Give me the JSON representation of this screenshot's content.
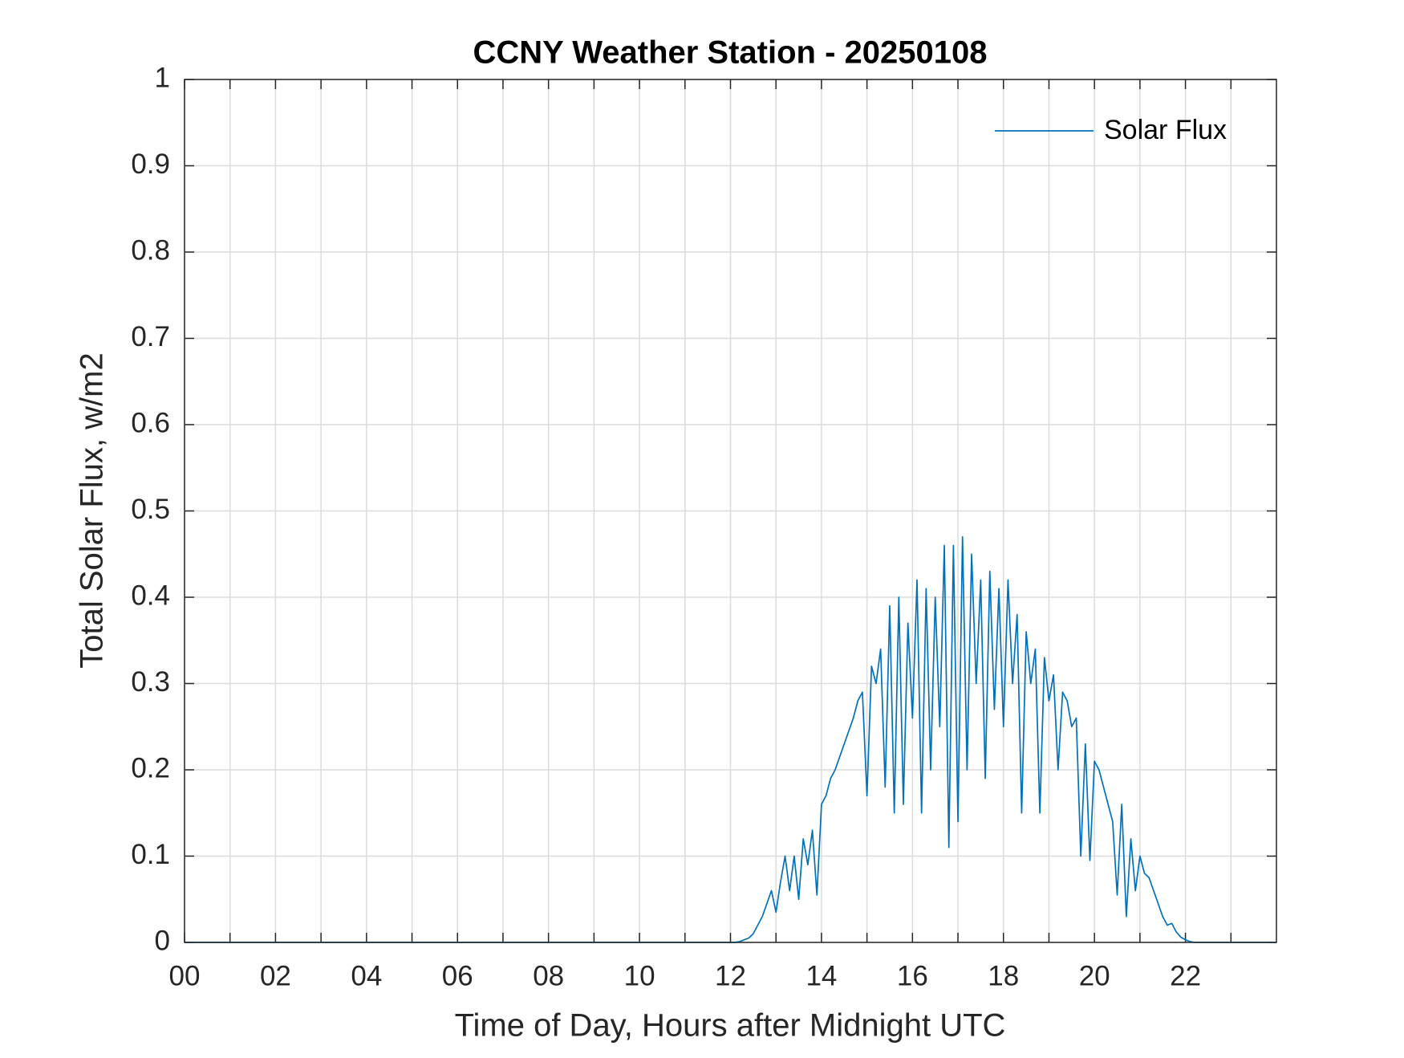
{
  "chart_data": {
    "type": "line",
    "title": "CCNY Weather Station - 20250108",
    "xlabel": "Time of Day, Hours after Midnight UTC",
    "ylabel": "Total Solar Flux, w/m2",
    "x": [
      0,
      12.0,
      12.1,
      12.2,
      12.3,
      12.4,
      12.5,
      12.6,
      12.7,
      12.8,
      12.9,
      13.0,
      13.1,
      13.2,
      13.3,
      13.4,
      13.5,
      13.6,
      13.7,
      13.8,
      13.9,
      14.0,
      14.1,
      14.2,
      14.3,
      14.4,
      14.5,
      14.6,
      14.7,
      14.8,
      14.9,
      15.0,
      15.1,
      15.2,
      15.3,
      15.4,
      15.5,
      15.6,
      15.7,
      15.8,
      15.9,
      16.0,
      16.1,
      16.2,
      16.3,
      16.4,
      16.5,
      16.6,
      16.7,
      16.8,
      16.9,
      17.0,
      17.1,
      17.2,
      17.3,
      17.4,
      17.5,
      17.6,
      17.7,
      17.8,
      17.9,
      18.0,
      18.1,
      18.2,
      18.3,
      18.4,
      18.5,
      18.6,
      18.7,
      18.8,
      18.9,
      19.0,
      19.1,
      19.2,
      19.3,
      19.4,
      19.5,
      19.6,
      19.7,
      19.8,
      19.9,
      20.0,
      20.1,
      20.2,
      20.3,
      20.4,
      20.5,
      20.6,
      20.7,
      20.8,
      20.9,
      21.0,
      21.1,
      21.2,
      21.3,
      21.4,
      21.5,
      21.6,
      21.7,
      21.8,
      21.9,
      22.0,
      22.1,
      22.2,
      24
    ],
    "series": [
      {
        "name": "Solar Flux",
        "color": "#0072bd",
        "values": [
          0,
          0,
          0,
          0.001,
          0.003,
          0.005,
          0.01,
          0.02,
          0.03,
          0.045,
          0.06,
          0.035,
          0.07,
          0.1,
          0.06,
          0.1,
          0.05,
          0.12,
          0.09,
          0.13,
          0.055,
          0.16,
          0.17,
          0.19,
          0.2,
          0.215,
          0.23,
          0.245,
          0.26,
          0.28,
          0.29,
          0.17,
          0.32,
          0.3,
          0.34,
          0.18,
          0.39,
          0.15,
          0.4,
          0.16,
          0.37,
          0.26,
          0.42,
          0.15,
          0.41,
          0.2,
          0.4,
          0.25,
          0.46,
          0.11,
          0.46,
          0.14,
          0.47,
          0.2,
          0.45,
          0.3,
          0.42,
          0.19,
          0.43,
          0.27,
          0.41,
          0.25,
          0.42,
          0.3,
          0.38,
          0.15,
          0.36,
          0.3,
          0.34,
          0.15,
          0.33,
          0.28,
          0.31,
          0.2,
          0.29,
          0.28,
          0.25,
          0.26,
          0.1,
          0.23,
          0.095,
          0.21,
          0.2,
          0.18,
          0.16,
          0.14,
          0.055,
          0.16,
          0.03,
          0.12,
          0.06,
          0.1,
          0.08,
          0.075,
          0.06,
          0.045,
          0.03,
          0.02,
          0.022,
          0.012,
          0.006,
          0.003,
          0.001,
          0,
          0
        ]
      }
    ],
    "xlim": [
      0,
      24
    ],
    "xticks": [
      {
        "value": 0,
        "label": "00"
      },
      {
        "value": 2,
        "label": "02"
      },
      {
        "value": 4,
        "label": "04"
      },
      {
        "value": 6,
        "label": "06"
      },
      {
        "value": 8,
        "label": "08"
      },
      {
        "value": 10,
        "label": "10"
      },
      {
        "value": 12,
        "label": "12"
      },
      {
        "value": 14,
        "label": "14"
      },
      {
        "value": 16,
        "label": "16"
      },
      {
        "value": 18,
        "label": "18"
      },
      {
        "value": 20,
        "label": "20"
      },
      {
        "value": 22,
        "label": "22"
      }
    ],
    "xminorticks": [
      1,
      3,
      5,
      7,
      9,
      11,
      13,
      15,
      17,
      19,
      21,
      23
    ],
    "ylim": [
      0,
      1
    ],
    "yticks": [
      0,
      0.1,
      0.2,
      0.3,
      0.4,
      0.5,
      0.6,
      0.7,
      0.8,
      0.9,
      1
    ],
    "grid": true,
    "legend": "top-right"
  }
}
